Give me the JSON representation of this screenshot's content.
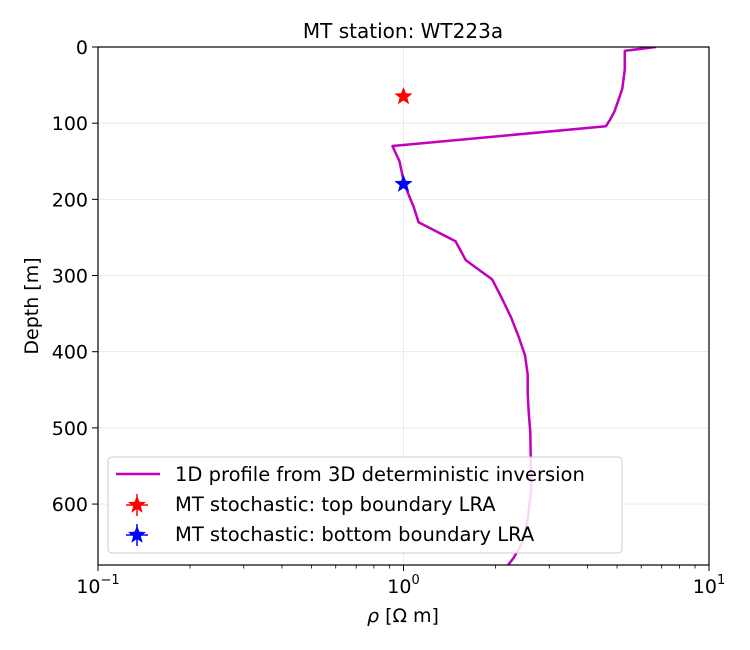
{
  "chart_data": {
    "type": "line",
    "title": "MT station: WT223a",
    "xlabel_symbol": "ρ",
    "xlabel_unit": "[Ω m]",
    "ylabel": "Depth [m]",
    "x_scale": "log",
    "xlim": [
      0.1,
      10
    ],
    "ylim": [
      680,
      0
    ],
    "y_inverted": true,
    "x_ticks": [
      {
        "value": 0.1,
        "base": "10",
        "exp": "−1"
      },
      {
        "value": 1,
        "base": "10",
        "exp": "0"
      },
      {
        "value": 10,
        "base": "10",
        "exp": "1"
      }
    ],
    "y_ticks": [
      0,
      100,
      200,
      300,
      400,
      500,
      600
    ],
    "grid": true,
    "legend_placement": "lower-left",
    "series": [
      {
        "name": "1D profile from 3D deterministic inversion",
        "color": "#bf00bf",
        "x": [
          6.7,
          5.3,
          5.3,
          5.2,
          5.05,
          4.9,
          4.75,
          4.6,
          0.92,
          0.97,
          1.0,
          1.03,
          1.08,
          1.12,
          1.48,
          1.6,
          1.95,
          2.1,
          2.25,
          2.38,
          2.5,
          2.55,
          2.55,
          2.57,
          2.6,
          2.62,
          2.55,
          2.45,
          2.3,
          2.2
        ],
        "y": [
          0,
          5,
          30,
          55,
          70,
          85,
          95,
          104,
          130,
          150,
          175,
          190,
          210,
          230,
          255,
          280,
          305,
          330,
          355,
          380,
          405,
          430,
          455,
          480,
          505,
          580,
          620,
          650,
          670,
          680
        ]
      },
      {
        "name": "MT stochastic: top boundary LRA",
        "color": "#ff0000",
        "marker": "star",
        "x": [
          1.0
        ],
        "y": [
          65
        ]
      },
      {
        "name": "MT stochastic: bottom boundary LRA",
        "color": "#0000ff",
        "marker": "star",
        "x": [
          1.0
        ],
        "y": [
          180
        ]
      }
    ]
  }
}
